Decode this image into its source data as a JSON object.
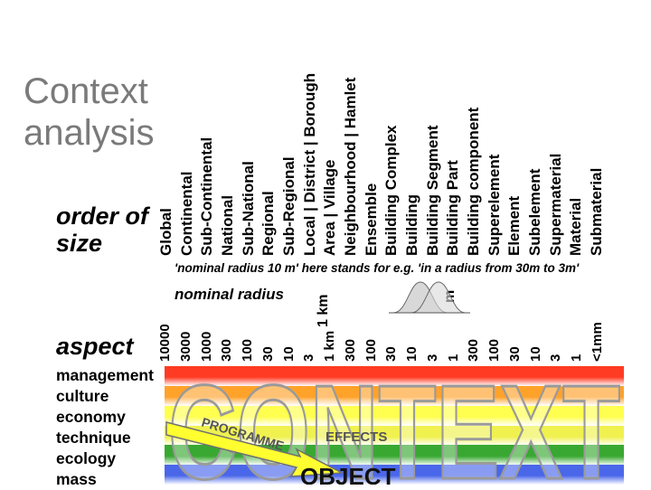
{
  "title": {
    "line1": "Context",
    "line2": "analysis"
  },
  "order_heading": {
    "line1": "order of",
    "line2": "size"
  },
  "scale_labels": [
    "Global",
    "Continental",
    "Sub-Continental",
    "National",
    "Sub-National",
    "Regional",
    "Sub-Regional",
    "Local | District | Borough",
    "Area | Village",
    "Neighbourhood | Hamlet",
    "Ensemble",
    "Building Complex",
    "Building",
    "Building Segment",
    "Building Part",
    "Building component",
    "Superelement",
    "Element",
    "Subelement",
    "Supermaterial",
    "Material",
    "Submaterial"
  ],
  "note": "'nominal radius 10 m' here stands for e.g. 'in a radius from 30m to 3m'",
  "nominal_radius_label": "nominal radius",
  "unit_km": "1 km",
  "unit_m": "m",
  "radius_values": [
    "10000",
    "3000",
    "1000",
    "300",
    "100",
    "30",
    "10",
    "3",
    "1 km",
    "300",
    "100",
    "30",
    "10",
    "3",
    "1",
    "300",
    "100",
    "30",
    "10",
    "3",
    "1",
    "<1mm"
  ],
  "aspect_heading": "aspect",
  "aspects": [
    "management",
    "culture",
    "economy",
    "technique",
    "ecology",
    "mass"
  ],
  "overlay": {
    "big_word": "CONTEXT",
    "arrow_text": "PROGRAMME",
    "effects": "EFFECTS",
    "object": "OBJECT"
  },
  "band_colors": [
    "#ff2a10",
    "#ff9a18",
    "#ffff40",
    "#eef040",
    "#28a020",
    "#3a5ae8"
  ]
}
